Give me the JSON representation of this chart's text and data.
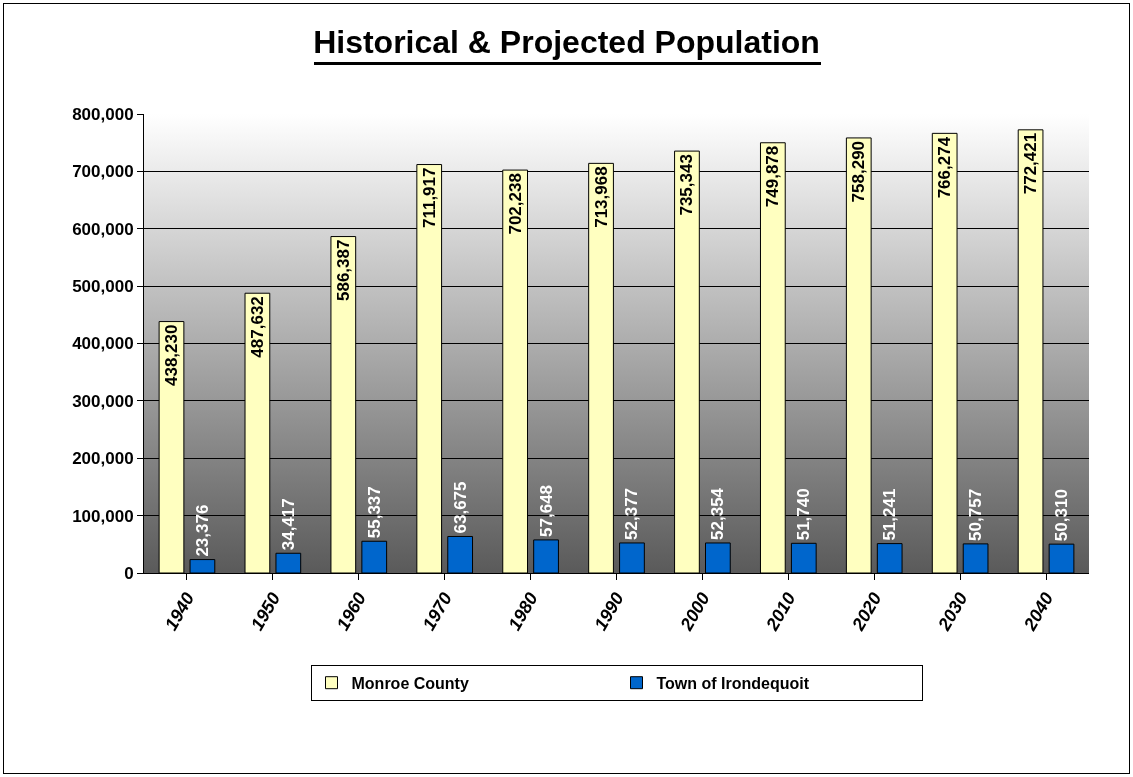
{
  "chart_data": {
    "type": "bar",
    "title": "Historical & Projected Population",
    "categories": [
      "1940",
      "1950",
      "1960",
      "1970",
      "1980",
      "1990",
      "2000",
      "2010",
      "2020",
      "2030",
      "2040"
    ],
    "series": [
      {
        "name": "Monroe County",
        "color": "#ffffc0",
        "values": [
          438230,
          487632,
          586387,
          711917,
          702238,
          713968,
          735343,
          749878,
          758290,
          766274,
          772421
        ],
        "value_labels": [
          "438,230",
          "487,632",
          "586,387",
          "711,917",
          "702,238",
          "713,968",
          "735,343",
          "749,878",
          "758,290",
          "766,274",
          "772,421"
        ]
      },
      {
        "name": "Town of Irondequoit",
        "color": "#0066cc",
        "values": [
          23376,
          34417,
          55337,
          63675,
          57648,
          52377,
          52354,
          51740,
          51241,
          50757,
          50310
        ],
        "value_labels": [
          "23,376",
          "34,417",
          "55,337",
          "63,675",
          "57,648",
          "52,377",
          "52,354",
          "51,740",
          "51,241",
          "50,757",
          "50,310"
        ]
      }
    ],
    "ylim": [
      0,
      800000
    ],
    "yticks": [
      {
        "value": 0,
        "label": "0"
      },
      {
        "value": 100000,
        "label": "100,000"
      },
      {
        "value": 200000,
        "label": "200,000"
      },
      {
        "value": 300000,
        "label": "300,000"
      },
      {
        "value": 400000,
        "label": "400,000"
      },
      {
        "value": 500000,
        "label": "500,000"
      },
      {
        "value": 600000,
        "label": "600,000"
      },
      {
        "value": 700000,
        "label": "700,000"
      },
      {
        "value": 800000,
        "label": "800,000"
      }
    ],
    "grid": "y",
    "legend": "bottom"
  }
}
